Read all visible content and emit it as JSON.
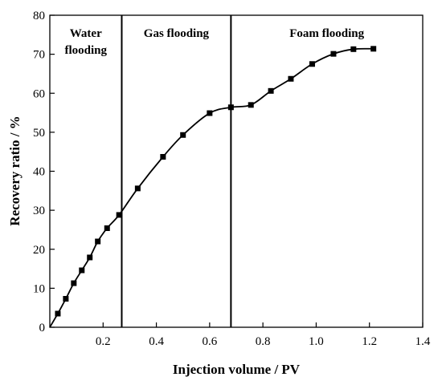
{
  "chart_data": {
    "type": "line",
    "xlabel": "Injection volume / PV",
    "ylabel": "Recovery ratio / %",
    "xlim": [
      0,
      1.4
    ],
    "ylim": [
      0,
      80
    ],
    "xticks": [
      0.2,
      0.4,
      0.6,
      0.8,
      1.0,
      1.2,
      1.4
    ],
    "xtick_labels": [
      "0.2",
      "0.4",
      "0.6",
      "0.8",
      "1.0",
      "1.2",
      "1.4"
    ],
    "yticks": [
      0,
      10,
      20,
      30,
      40,
      50,
      60,
      70,
      80
    ],
    "ytick_labels": [
      "0",
      "10",
      "20",
      "30",
      "40",
      "50",
      "60",
      "70",
      "80"
    ],
    "grid": false,
    "marker": "square",
    "color": "#000000",
    "series": [
      {
        "x": [
          0.0,
          0.03,
          0.06,
          0.09,
          0.12,
          0.15,
          0.18,
          0.215,
          0.26,
          0.33,
          0.425,
          0.5,
          0.6,
          0.68,
          0.755,
          0.83,
          0.905,
          0.985,
          1.065,
          1.14,
          1.215
        ],
        "y": [
          0.0,
          3.5,
          7.3,
          11.3,
          14.6,
          17.9,
          22.0,
          25.4,
          28.8,
          35.6,
          43.7,
          49.3,
          54.9,
          56.4,
          57.0,
          60.6,
          63.7,
          67.5,
          70.1,
          71.3,
          71.4
        ]
      }
    ],
    "dividers_x": [
      0.27,
      0.68
    ],
    "regions": [
      {
        "lines": [
          "Water",
          "flooding"
        ],
        "x_center": 0.135
      },
      {
        "lines": [
          "Gas flooding"
        ],
        "x_center": 0.475
      },
      {
        "lines": [
          "Foam flooding"
        ],
        "x_center": 1.04
      }
    ]
  }
}
